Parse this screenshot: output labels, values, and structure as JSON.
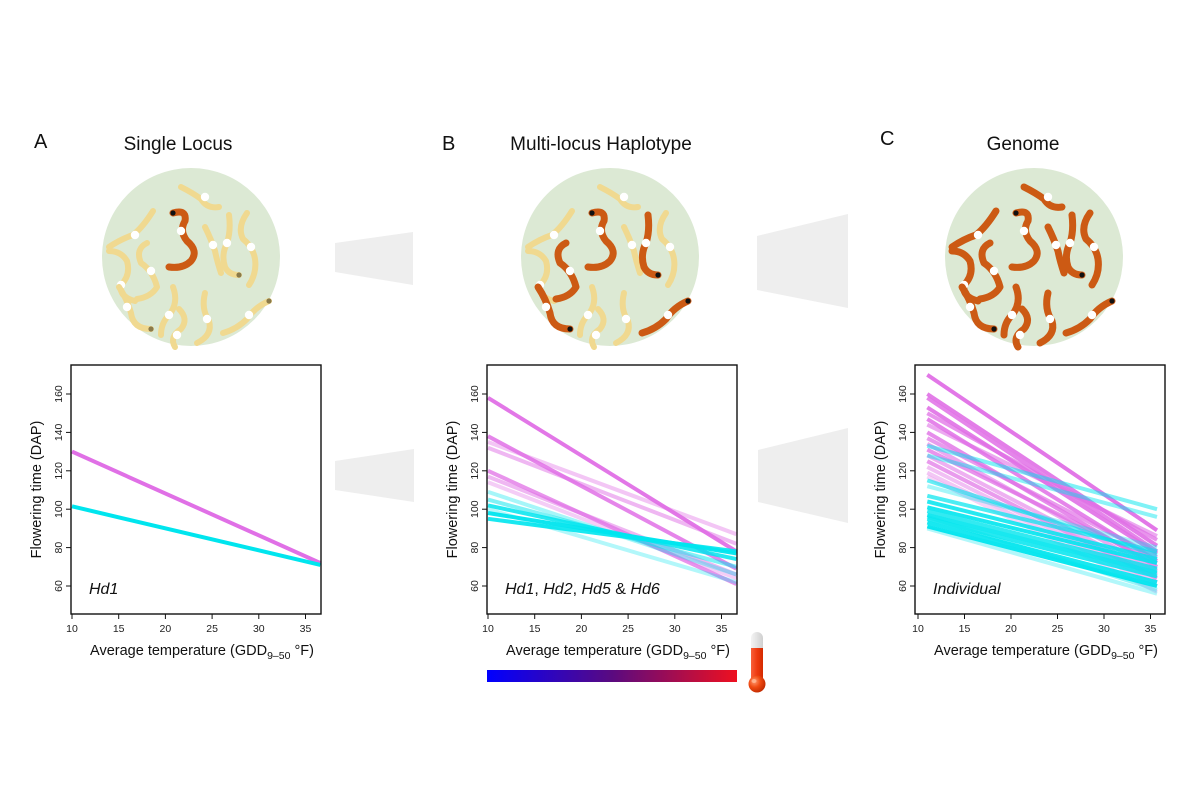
{
  "figure": {
    "panels": [
      {
        "letter": "A",
        "title": "Single Locus"
      },
      {
        "letter": "B",
        "title": "Multi-locus Haplotype"
      },
      {
        "letter": "C",
        "title": "Genome"
      }
    ],
    "colors": {
      "early_allele": "#00e5ee",
      "late_allele": "#e070e6",
      "chromosome_inactive": "#f0d990",
      "chromosome_active": "#cc5a14",
      "centromere": "#ffffff",
      "nucleus": "#dce9d4",
      "arrow": "#eeeeee",
      "temp_scale_start": "#0000ff",
      "temp_scale_mid": "#5a0a80",
      "temp_scale_end": "#ee1020"
    },
    "temperature_scale": {
      "label": "temperature",
      "icon": "thermometer-icon"
    }
  },
  "chart_data": [
    {
      "type": "line",
      "panel": "A",
      "annotation": "Hd1",
      "xlabel_main": "Average temperature (GDD",
      "xlabel_sub": "9–50",
      "xlabel_end": " °F)",
      "ylabel": "Flowering time (DAP)",
      "xlim": [
        9.9,
        36.6
      ],
      "ylim": [
        45,
        175
      ],
      "xticks": [
        "10",
        "15",
        "20",
        "25",
        "30",
        "35"
      ],
      "yticks": [
        "60",
        "80",
        "100",
        "120",
        "140",
        "160"
      ],
      "grid": false,
      "series": [
        {
          "name": "late",
          "color": "late",
          "opacity": 1,
          "x": [
            10,
            36.6
          ],
          "y": [
            130,
            72
          ]
        },
        {
          "name": "early",
          "color": "early",
          "opacity": 1,
          "x": [
            10,
            36.6
          ],
          "y": [
            101.5,
            71
          ]
        }
      ]
    },
    {
      "type": "line",
      "panel": "B",
      "annotation_parts": [
        "Hd1",
        ", ",
        "Hd2",
        ", ",
        "Hd5",
        " & ",
        "Hd6"
      ],
      "xlabel_main": "Average temperature (GDD",
      "xlabel_sub": "9–50",
      "xlabel_end": " °F)",
      "ylabel": "Flowering time (DAP)",
      "xlim": [
        9.9,
        36.6
      ],
      "ylim": [
        45,
        175
      ],
      "xticks": [
        "10",
        "15",
        "20",
        "25",
        "30",
        "35"
      ],
      "yticks": [
        "60",
        "80",
        "100",
        "120",
        "140",
        "160"
      ],
      "grid": false,
      "series": [
        {
          "color": "late",
          "opacity": 0.95,
          "x": [
            10,
            36.6
          ],
          "y": [
            158,
            78
          ]
        },
        {
          "color": "late",
          "opacity": 0.85,
          "x": [
            10,
            36.6
          ],
          "y": [
            138,
            69
          ]
        },
        {
          "color": "late",
          "opacity": 0.4,
          "x": [
            10,
            36.6
          ],
          "y": [
            135,
            87
          ]
        },
        {
          "color": "late",
          "opacity": 0.5,
          "x": [
            10,
            36.6
          ],
          "y": [
            132,
            82
          ]
        },
        {
          "color": "late",
          "opacity": 0.75,
          "x": [
            10,
            36.6
          ],
          "y": [
            120,
            61
          ]
        },
        {
          "color": "late",
          "opacity": 0.5,
          "x": [
            10,
            36.6
          ],
          "y": [
            117,
            66
          ]
        },
        {
          "color": "late",
          "opacity": 0.35,
          "x": [
            10,
            36.6
          ],
          "y": [
            114,
            64
          ]
        },
        {
          "color": "early",
          "opacity": 0.35,
          "x": [
            10,
            36.6
          ],
          "y": [
            109,
            66
          ]
        },
        {
          "color": "early",
          "opacity": 0.5,
          "x": [
            10,
            36.6
          ],
          "y": [
            105,
            70
          ]
        },
        {
          "color": "early",
          "opacity": 0.85,
          "x": [
            10,
            36.6
          ],
          "y": [
            102,
            74
          ]
        },
        {
          "color": "early",
          "opacity": 0.95,
          "x": [
            10,
            36.6
          ],
          "y": [
            98,
            77
          ]
        },
        {
          "color": "early",
          "opacity": 0.9,
          "x": [
            10,
            36.6
          ],
          "y": [
            95,
            78
          ]
        },
        {
          "color": "early",
          "opacity": 0.3,
          "x": [
            10,
            36.6
          ],
          "y": [
            100,
            62
          ]
        }
      ]
    },
    {
      "type": "line",
      "panel": "C",
      "annotation": "Individual",
      "xlabel_main": "Average temperature (GDD",
      "xlabel_sub": "9–50",
      "xlabel_end": " °F)",
      "ylabel": "Flowering time (DAP)",
      "xlim": [
        9.9,
        36.6
      ],
      "ylim": [
        45,
        175
      ],
      "xticks": [
        "10",
        "15",
        "20",
        "25",
        "30",
        "35"
      ],
      "yticks": [
        "60",
        "80",
        "100",
        "120",
        "140",
        "160"
      ],
      "grid": false,
      "series": [
        {
          "color": "late",
          "opacity": 0.95,
          "x": [
            11,
            35.7
          ],
          "y": [
            170,
            89
          ]
        },
        {
          "color": "late",
          "opacity": 0.9,
          "x": [
            11,
            35.7
          ],
          "y": [
            160,
            81
          ]
        },
        {
          "color": "late",
          "opacity": 0.85,
          "x": [
            11,
            35.7
          ],
          "y": [
            158,
            78
          ]
        },
        {
          "color": "late",
          "opacity": 0.9,
          "x": [
            11,
            35.7
          ],
          "y": [
            153,
            77
          ]
        },
        {
          "color": "late",
          "opacity": 0.75,
          "x": [
            11,
            35.7
          ],
          "y": [
            150,
            84
          ]
        },
        {
          "color": "late",
          "opacity": 0.85,
          "x": [
            11,
            35.7
          ],
          "y": [
            147,
            73
          ]
        },
        {
          "color": "late",
          "opacity": 0.6,
          "x": [
            11,
            35.7
          ],
          "y": [
            144,
            86
          ]
        },
        {
          "color": "late",
          "opacity": 0.8,
          "x": [
            11,
            35.7
          ],
          "y": [
            140,
            70
          ]
        },
        {
          "color": "late",
          "opacity": 0.7,
          "x": [
            11,
            35.7
          ],
          "y": [
            137,
            75
          ]
        },
        {
          "color": "late",
          "opacity": 0.6,
          "x": [
            11,
            35.7
          ],
          "y": [
            134,
            68
          ]
        },
        {
          "color": "late",
          "opacity": 0.75,
          "x": [
            11,
            35.7
          ],
          "y": [
            131,
            72
          ]
        },
        {
          "color": "late",
          "opacity": 0.55,
          "x": [
            11,
            35.7
          ],
          "y": [
            128,
            66
          ]
        },
        {
          "color": "late",
          "opacity": 0.7,
          "x": [
            11,
            35.7
          ],
          "y": [
            125,
            64
          ]
        },
        {
          "color": "late",
          "opacity": 0.45,
          "x": [
            11,
            35.7
          ],
          "y": [
            122,
            62
          ]
        },
        {
          "color": "late",
          "opacity": 0.4,
          "x": [
            11,
            35.7
          ],
          "y": [
            119,
            60
          ]
        },
        {
          "color": "late",
          "opacity": 0.3,
          "x": [
            11,
            35.7
          ],
          "y": [
            117,
            57
          ]
        },
        {
          "color": "early",
          "opacity": 0.5,
          "x": [
            11,
            35.7
          ],
          "y": [
            133,
            100
          ]
        },
        {
          "color": "early",
          "opacity": 0.45,
          "x": [
            11,
            35.7
          ],
          "y": [
            128,
            96
          ]
        },
        {
          "color": "early",
          "opacity": 0.6,
          "x": [
            11,
            35.7
          ],
          "y": [
            115,
            76
          ]
        },
        {
          "color": "early",
          "opacity": 0.35,
          "x": [
            11,
            35.7
          ],
          "y": [
            112,
            80
          ]
        },
        {
          "color": "early",
          "opacity": 0.7,
          "x": [
            11,
            35.7
          ],
          "y": [
            107,
            78
          ]
        },
        {
          "color": "early",
          "opacity": 0.85,
          "x": [
            11,
            35.7
          ],
          "y": [
            104,
            74
          ]
        },
        {
          "color": "early",
          "opacity": 0.9,
          "x": [
            11,
            35.7
          ],
          "y": [
            101,
            72
          ]
        },
        {
          "color": "early",
          "opacity": 0.8,
          "x": [
            11,
            35.7
          ],
          "y": [
            99,
            69
          ]
        },
        {
          "color": "early",
          "opacity": 0.9,
          "x": [
            11,
            35.7
          ],
          "y": [
            97,
            67
          ]
        },
        {
          "color": "early",
          "opacity": 0.85,
          "x": [
            11,
            35.7
          ],
          "y": [
            95,
            65
          ]
        },
        {
          "color": "early",
          "opacity": 0.9,
          "x": [
            11,
            35.7
          ],
          "y": [
            93,
            62
          ]
        },
        {
          "color": "early",
          "opacity": 0.95,
          "x": [
            11,
            35.7
          ],
          "y": [
            91,
            60
          ]
        },
        {
          "color": "early",
          "opacity": 0.4,
          "x": [
            11,
            35.7
          ],
          "y": [
            96,
            58
          ]
        },
        {
          "color": "early",
          "opacity": 0.3,
          "x": [
            11,
            35.7
          ],
          "y": [
            90,
            56
          ]
        }
      ]
    }
  ]
}
